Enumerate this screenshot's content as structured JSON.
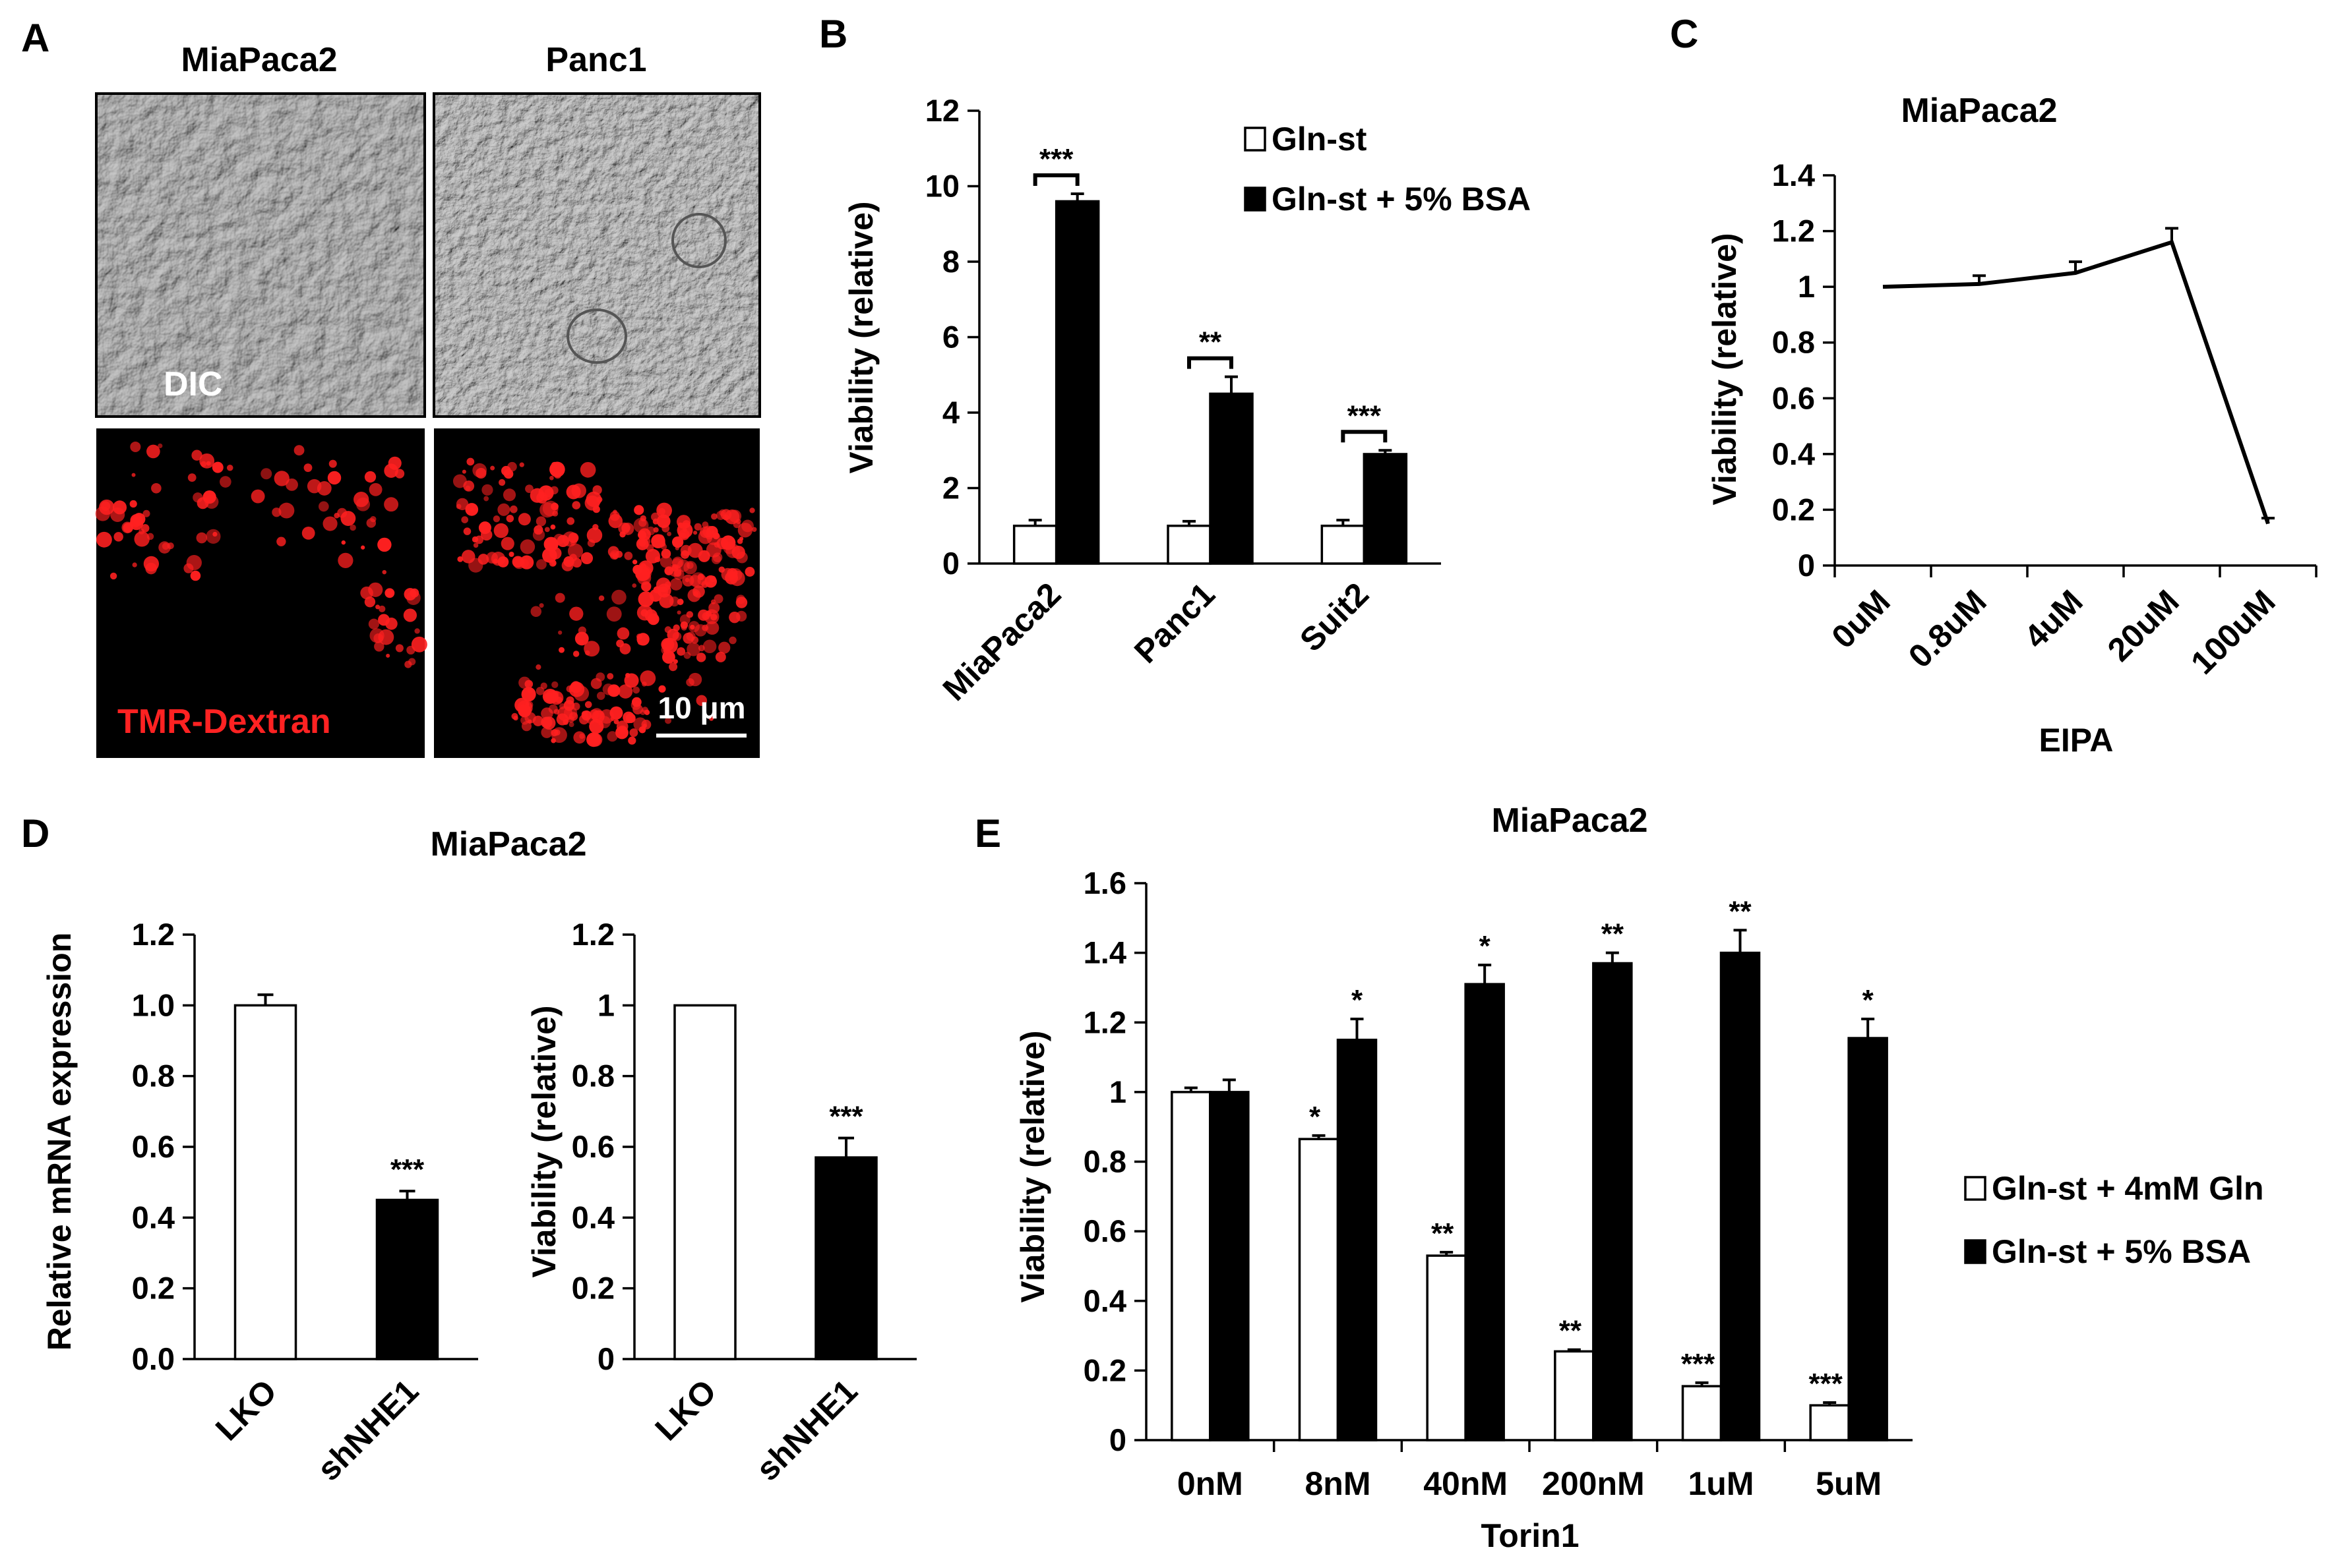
{
  "panel_labels": [
    "A",
    "B",
    "C",
    "D",
    "E"
  ],
  "panel_a": {
    "columns": [
      "MiaPaca2",
      "Panc1"
    ],
    "row_labels": [
      "DIC",
      "TMR-Dextran"
    ],
    "scale_bar": "10 μm",
    "colors": {
      "dic": "#9a9a9a",
      "fluorescence": "#ff2020",
      "label_red": "#ff2222"
    }
  },
  "chart_data": [
    {
      "id": "B",
      "type": "bar",
      "title": "",
      "categories": [
        "MiaPaca2",
        "Panc1",
        "Suit2"
      ],
      "series": [
        {
          "name": "Gln-st",
          "values": [
            1.0,
            1.0,
            1.0
          ],
          "errors": [
            0.15,
            0.12,
            0.15
          ],
          "fill": "#ffffff"
        },
        {
          "name": "Gln-st + 5% BSA",
          "values": [
            9.6,
            4.5,
            2.9
          ],
          "errors": [
            0.2,
            0.45,
            0.1
          ],
          "fill": "#000000"
        }
      ],
      "significance": [
        "***",
        "**",
        "***"
      ],
      "ylabel": "Viability (relative)",
      "xlabel": "",
      "ylim": [
        0,
        12
      ],
      "yticks": [
        "0",
        "2",
        "4",
        "6",
        "8",
        "10",
        "12"
      ],
      "legend_position": "top-right",
      "grid": false
    },
    {
      "id": "C",
      "type": "line",
      "title": "MiaPaca2",
      "categories": [
        "0uM",
        "0.8uM",
        "4uM",
        "20uM",
        "100uM"
      ],
      "values": [
        1.0,
        1.01,
        1.05,
        1.16,
        0.15
      ],
      "errors": [
        0.0,
        0.03,
        0.04,
        0.05,
        0.02
      ],
      "xlabel": "EIPA",
      "ylabel": "Viability (relative)",
      "ylim": [
        0,
        1.4
      ],
      "yticks": [
        "0",
        "0.2",
        "0.4",
        "0.6",
        "0.8",
        "1",
        "1.2",
        "1.4"
      ],
      "grid": false
    },
    {
      "id": "D1",
      "type": "bar",
      "title": "MiaPaca2",
      "categories": [
        "LKO",
        "shNHE1"
      ],
      "values": [
        1.0,
        0.45
      ],
      "errors": [
        0.03,
        0.025
      ],
      "fills": [
        "#ffffff",
        "#000000"
      ],
      "significance": [
        "",
        "***"
      ],
      "ylabel": "Relative mRNA expression",
      "xlabel": "",
      "ylim": [
        0,
        1.2
      ],
      "yticks": [
        "0.0",
        "0.2",
        "0.4",
        "0.6",
        "0.8",
        "1.0",
        "1.2"
      ],
      "grid": false
    },
    {
      "id": "D2",
      "type": "bar",
      "title": "",
      "categories": [
        "LKO",
        "shNHE1"
      ],
      "values": [
        1.0,
        0.57
      ],
      "errors": [
        0.0,
        0.055
      ],
      "fills": [
        "#ffffff",
        "#000000"
      ],
      "significance": [
        "",
        "***"
      ],
      "ylabel": "Viability (relative)",
      "xlabel": "",
      "ylim": [
        0,
        1.2
      ],
      "yticks": [
        "0",
        "0.2",
        "0.4",
        "0.6",
        "0.8",
        "1",
        "1.2"
      ],
      "grid": false
    },
    {
      "id": "E",
      "type": "bar",
      "title": "MiaPaca2",
      "categories": [
        "0nM",
        "8nM",
        "40nM",
        "200nM",
        "1uM",
        "5uM"
      ],
      "series": [
        {
          "name": "Gln-st + 4mM Gln",
          "values": [
            1.0,
            0.865,
            0.53,
            0.255,
            0.155,
            0.1
          ],
          "errors": [
            0.012,
            0.01,
            0.01,
            0.005,
            0.01,
            0.008
          ],
          "fill": "#ffffff",
          "significance": [
            "",
            "*",
            "**",
            "**",
            "***",
            "***"
          ]
        },
        {
          "name": "Gln-st + 5% BSA",
          "values": [
            1.0,
            1.15,
            1.31,
            1.37,
            1.4,
            1.155
          ],
          "errors": [
            0.035,
            0.06,
            0.055,
            0.03,
            0.065,
            0.055
          ],
          "fill": "#000000",
          "significance": [
            "",
            "*",
            "*",
            "**",
            "**",
            "*"
          ]
        }
      ],
      "xlabel": "Torin1",
      "ylabel": "Viability (relative)",
      "ylim": [
        0,
        1.6
      ],
      "yticks": [
        "0",
        "0.2",
        "0.4",
        "0.6",
        "0.8",
        "1",
        "1.2",
        "1.4",
        "1.6"
      ],
      "legend_position": "right",
      "grid": false
    }
  ]
}
